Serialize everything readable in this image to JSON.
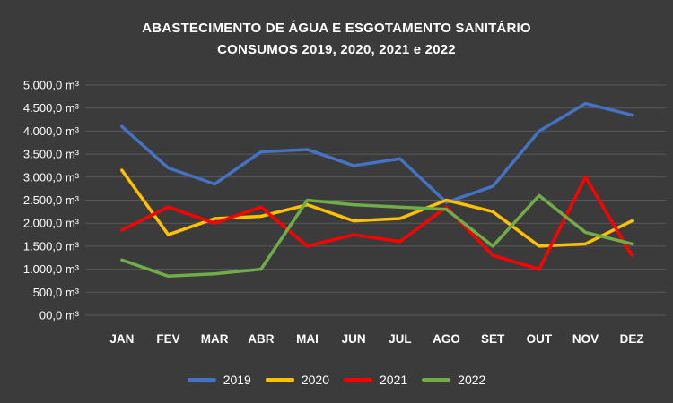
{
  "chart_data": {
    "type": "line",
    "title_line1": "ABASTECIMENTO DE ÁGUA E ESGOTAMENTO SANITÁRIO",
    "title_line2": "CONSUMOS 2019, 2020, 2021 e 2022",
    "categories": [
      "JAN",
      "FEV",
      "MAR",
      "ABR",
      "MAI",
      "JUN",
      "JUL",
      "AGO",
      "SET",
      "OUT",
      "NOV",
      "DEZ"
    ],
    "ylim": [
      0,
      5000
    ],
    "grid": true,
    "legend_position": "bottom",
    "background_color": "#3B3B3B",
    "gridline_color": "#5B5B5B",
    "text_color": "#FFFFFF",
    "y_ticks": [
      {
        "value": 0,
        "label": "00,0 m³"
      },
      {
        "value": 500,
        "label": "500,0 m³"
      },
      {
        "value": 1000,
        "label": "1.000,0 m³"
      },
      {
        "value": 1500,
        "label": "1.500,0 m³"
      },
      {
        "value": 2000,
        "label": "2.000,0 m³"
      },
      {
        "value": 2500,
        "label": "2.500,0 m³"
      },
      {
        "value": 3000,
        "label": "3.000,0 m³"
      },
      {
        "value": 3500,
        "label": "3.500,0 m³"
      },
      {
        "value": 4000,
        "label": "4.000,0 m³"
      },
      {
        "value": 4500,
        "label": "4.500,0 m³"
      },
      {
        "value": 5000,
        "label": "5.000,0 m³"
      }
    ],
    "series": [
      {
        "name": "2019",
        "color": "#4472C4",
        "values": [
          4100,
          3200,
          2850,
          3550,
          3600,
          3250,
          3400,
          2450,
          2800,
          4000,
          4600,
          4350
        ]
      },
      {
        "name": "2020",
        "color": "#FFC000",
        "values": [
          3150,
          1750,
          2100,
          2150,
          2400,
          2050,
          2100,
          2500,
          2250,
          1500,
          1550,
          2050
        ]
      },
      {
        "name": "2021",
        "color": "#FF0000",
        "values": [
          1850,
          2350,
          2000,
          2350,
          1500,
          1750,
          1600,
          2350,
          1300,
          1000,
          3000,
          1300
        ]
      },
      {
        "name": "2022",
        "color": "#70AD47",
        "values": [
          1200,
          850,
          900,
          1000,
          2500,
          2400,
          2350,
          2300,
          1500,
          2600,
          1800,
          1550
        ]
      }
    ]
  }
}
